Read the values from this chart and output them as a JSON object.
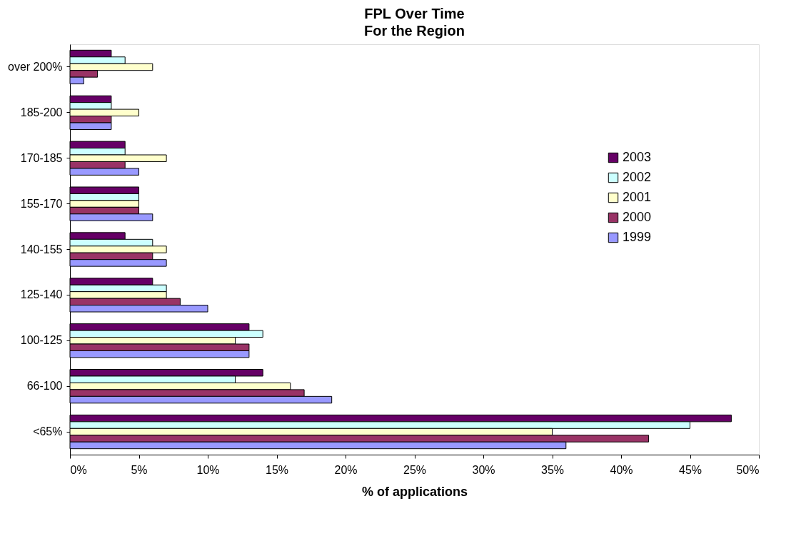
{
  "chart_data": {
    "type": "bar",
    "orientation": "horizontal",
    "title": "FPL Over Time",
    "subtitle": "For the Region",
    "xlabel": "% of applications",
    "categories": [
      "over 200%",
      "185-200",
      "170-185",
      "155-170",
      "140-155",
      "125-140",
      "100-125",
      "66-100",
      "<65%"
    ],
    "series": [
      {
        "name": "2003",
        "color": "#660066",
        "values": [
          3,
          3,
          4,
          5,
          4,
          6,
          13,
          14,
          48
        ]
      },
      {
        "name": "2002",
        "color": "#ccffff",
        "values": [
          4,
          3,
          4,
          5,
          6,
          7,
          14,
          12,
          45
        ]
      },
      {
        "name": "2001",
        "color": "#ffffcc",
        "values": [
          6,
          5,
          7,
          5,
          7,
          7,
          12,
          16,
          35
        ]
      },
      {
        "name": "2000",
        "color": "#993366",
        "values": [
          2,
          3,
          4,
          5,
          6,
          8,
          13,
          17,
          42
        ]
      },
      {
        "name": "1999",
        "color": "#9999ff",
        "values": [
          1,
          3,
          5,
          6,
          7,
          10,
          13,
          19,
          36
        ]
      }
    ],
    "xlim": [
      0,
      50
    ],
    "xticks": [
      {
        "value": 0,
        "label": "0%"
      },
      {
        "value": 5,
        "label": "5%"
      },
      {
        "value": 10,
        "label": "10%"
      },
      {
        "value": 15,
        "label": "15%"
      },
      {
        "value": 20,
        "label": "20%"
      },
      {
        "value": 25,
        "label": "25%"
      },
      {
        "value": 30,
        "label": "30%"
      },
      {
        "value": 35,
        "label": "35%"
      },
      {
        "value": 40,
        "label": "40%"
      },
      {
        "value": 45,
        "label": "45%"
      },
      {
        "value": 50,
        "label": "50%"
      }
    ],
    "grid": false,
    "legend": "top right"
  }
}
